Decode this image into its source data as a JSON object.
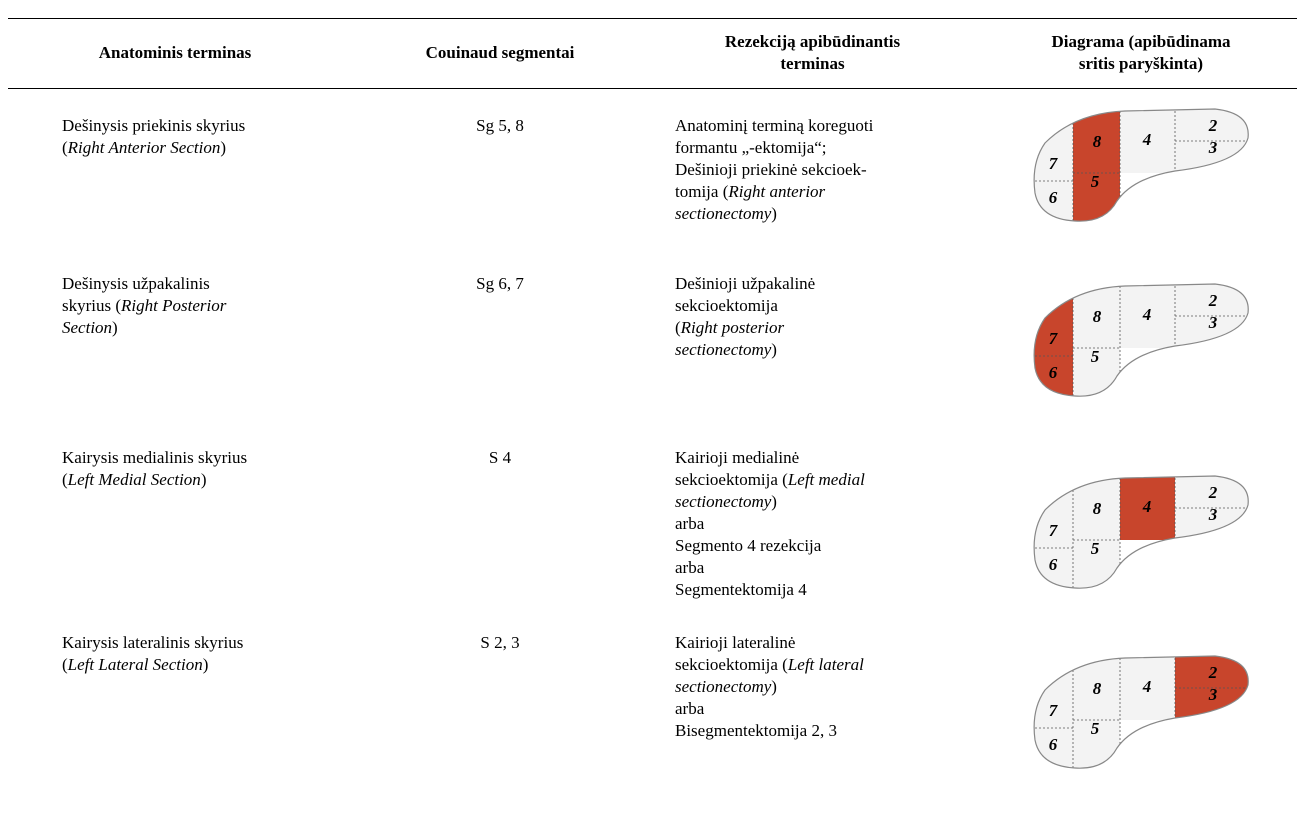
{
  "table": {
    "header": [
      [
        [
          "Anatominis terminas"
        ]
      ],
      [
        [
          "Couinaud segmentai"
        ]
      ],
      [
        [
          "Rezekciją apibūdinantis"
        ],
        [
          "terminas"
        ]
      ],
      [
        [
          "Diagrama (apibūdinama"
        ],
        [
          "sritis paryškinta)"
        ]
      ]
    ],
    "rows": [
      {
        "term": [
          [
            "Dešinysis priekinis skyrius"
          ],
          [
            "(",
            {
              "italic": "Right Anterior Section"
            },
            ")"
          ]
        ],
        "segments": "Sg 5, 8",
        "resection": [
          [
            "Anatominį terminą koreguoti"
          ],
          [
            "formantu „-ektomija“;"
          ],
          [
            "Dešinioji priekinė sekcioek-"
          ],
          [
            "tomija (",
            {
              "italic": "Right anterior"
            }
          ],
          [
            {
              "italic": "sectionectomy"
            },
            ")"
          ]
        ],
        "diagram": {
          "labels": [
            "7",
            "6",
            "8",
            "5",
            "4",
            "2",
            "3"
          ],
          "highlight": [
            2,
            3
          ]
        }
      },
      {
        "term": [
          [
            "Dešinysis užpakalinis"
          ],
          [
            "skyrius (",
            {
              "italic": "Right Posterior"
            }
          ],
          [
            {
              "italic": "Section"
            },
            ")"
          ]
        ],
        "segments": "Sg 6, 7",
        "resection": [
          [
            "Dešinioji užpakalinė"
          ],
          [
            "sekcioektomija"
          ],
          [
            "(",
            {
              "italic": "Right posterior"
            }
          ],
          [
            {
              "italic": "sectionectomy"
            },
            ")"
          ]
        ],
        "diagram": {
          "labels": [
            "7",
            "6",
            "8",
            "5",
            "4",
            "2",
            "3"
          ],
          "highlight": [
            0,
            1
          ]
        }
      },
      {
        "term": [
          [
            "Kairysis medialinis skyrius"
          ],
          [
            "(",
            {
              "italic": "Left Medial Section"
            },
            ")"
          ]
        ],
        "segments": "S 4",
        "resection": [
          [
            "Kairioji medialinė"
          ],
          [
            "sekcioektomija (",
            {
              "italic": "Left medial"
            }
          ],
          [
            {
              "italic": "sectionectomy"
            },
            ")"
          ],
          [
            "arba"
          ],
          [
            "Segmento 4 rezekcija"
          ],
          [
            "arba"
          ],
          [
            "Segmentektomija 4"
          ]
        ],
        "diagram": {
          "labels": [
            "7",
            "6",
            "8",
            "5",
            "4",
            "2",
            "3"
          ],
          "highlight": [
            4
          ]
        }
      },
      {
        "term": [
          [
            "Kairysis lateralinis skyrius"
          ],
          [
            "(",
            {
              "italic": "Left Lateral Section"
            },
            ")"
          ]
        ],
        "segments": "S 2, 3",
        "resection": [
          [
            "Kairioji lateralinė"
          ],
          [
            "sekcioektomija (",
            {
              "italic": "Left lateral"
            }
          ],
          [
            {
              "italic": "sectionectomy"
            },
            ")"
          ],
          [
            "arba"
          ],
          [
            "Bisegmentektomija 2, 3"
          ]
        ],
        "diagram": {
          "labels": [
            "7",
            "6",
            "8",
            "5",
            "4",
            "2",
            "3"
          ],
          "highlight": [
            5,
            6
          ]
        }
      }
    ]
  }
}
